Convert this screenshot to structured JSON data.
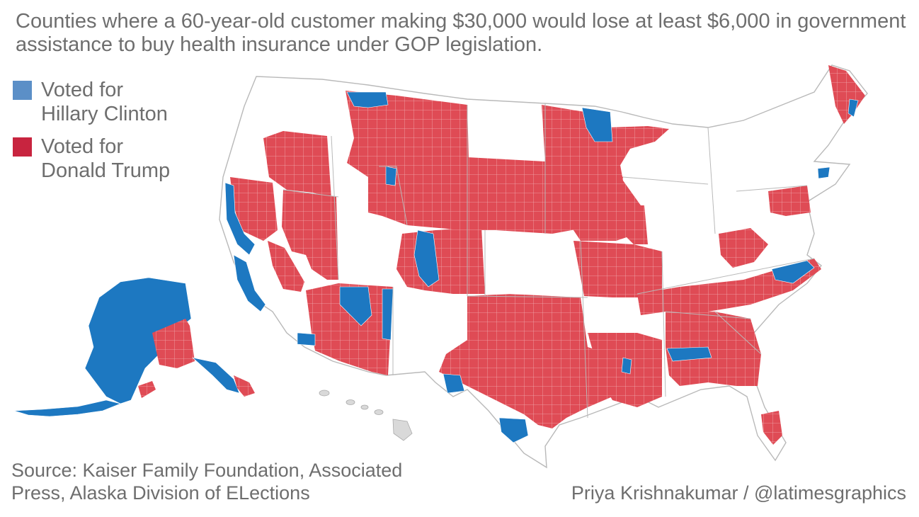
{
  "title": "Counties where a 60-year-old customer making $30,000 would lose at least $6,000 in government assistance to buy health insurance under GOP legislation.",
  "legend": {
    "items": [
      {
        "label_line1": "Voted for",
        "label_line2": "Hillary Clinton",
        "color": "#5b8fc7"
      },
      {
        "label_line1": "Voted for",
        "label_line2": "Donald Trump",
        "color": "#c8243f"
      }
    ]
  },
  "map": {
    "clinton_color": "#1d78c1",
    "trump_color": "#df4b55",
    "no_data_color": "#ffffff",
    "state_border_color": "#b9b9b9",
    "territory_color": "#d9d9d9"
  },
  "source": {
    "line1": "Source: Kaiser Family Foundation, Associated",
    "line2": "Press, Alaska Division of ELections"
  },
  "credit": "Priya Krishnakumar / @latimesgraphics"
}
